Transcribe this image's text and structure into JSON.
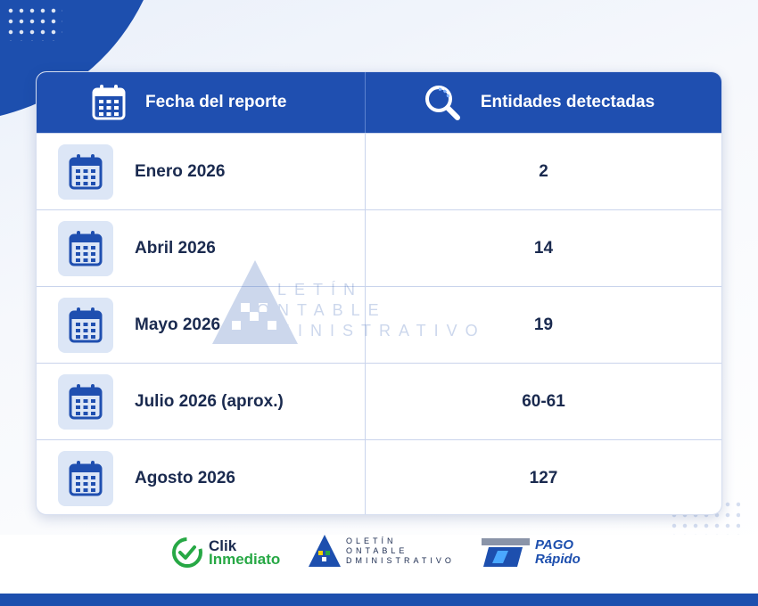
{
  "table": {
    "header": {
      "date_label": "Fecha del reporte",
      "count_label": "Entidades detectadas",
      "date_icon": "calendar-icon",
      "count_icon": "search-icon"
    },
    "rows": [
      {
        "date": "Enero 2026",
        "count": "2"
      },
      {
        "date": "Abril 2026",
        "count": "14"
      },
      {
        "date": "Mayo 2026",
        "count": "19"
      },
      {
        "date": "Julio 2026 (aprox.)",
        "count": "60-61"
      },
      {
        "date": "Agosto 2026",
        "count": "127"
      }
    ]
  },
  "watermark": {
    "line1": "OLETÍN",
    "line2": "ONTABLE",
    "line3": "DMINISTRATIVO"
  },
  "footer": {
    "clik": {
      "line1": "Clik",
      "line2": "Inmediato"
    },
    "boletin": {
      "line1": "OLETÍN",
      "line2": "ONTABLE",
      "line3": "DMINISTRATIVO"
    },
    "pago": {
      "line1": "PAGO",
      "line2": "Rápido"
    }
  },
  "colors": {
    "primary": "#1f4fb0",
    "text": "#1a2a4f",
    "icon_bg": "#dce6f6",
    "green": "#27a845"
  }
}
